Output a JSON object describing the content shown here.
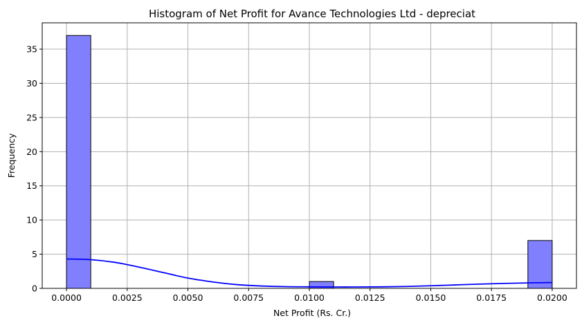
{
  "chart_data": {
    "type": "bar",
    "subtype": "histogram",
    "title": "Histogram of Net Profit for Avance Technologies Ltd - depreciat",
    "xlabel": "Net Profit (Rs. Cr.)",
    "ylabel": "Frequency",
    "xlim": [
      -0.001,
      0.021
    ],
    "ylim": [
      0,
      38.85
    ],
    "grid": true,
    "bin_width": 0.001,
    "bins": [
      {
        "start": 0.0,
        "end": 0.001,
        "count": 37
      },
      {
        "start": 0.001,
        "end": 0.002,
        "count": 0
      },
      {
        "start": 0.002,
        "end": 0.003,
        "count": 0
      },
      {
        "start": 0.003,
        "end": 0.004,
        "count": 0
      },
      {
        "start": 0.004,
        "end": 0.005,
        "count": 0
      },
      {
        "start": 0.005,
        "end": 0.006,
        "count": 0
      },
      {
        "start": 0.006,
        "end": 0.007,
        "count": 0
      },
      {
        "start": 0.007,
        "end": 0.008,
        "count": 0
      },
      {
        "start": 0.008,
        "end": 0.009,
        "count": 0
      },
      {
        "start": 0.009,
        "end": 0.01,
        "count": 0
      },
      {
        "start": 0.01,
        "end": 0.011,
        "count": 1
      },
      {
        "start": 0.011,
        "end": 0.012,
        "count": 0
      },
      {
        "start": 0.012,
        "end": 0.013,
        "count": 0
      },
      {
        "start": 0.013,
        "end": 0.014,
        "count": 0
      },
      {
        "start": 0.014,
        "end": 0.015,
        "count": 0
      },
      {
        "start": 0.015,
        "end": 0.016,
        "count": 0
      },
      {
        "start": 0.016,
        "end": 0.017,
        "count": 0
      },
      {
        "start": 0.017,
        "end": 0.018,
        "count": 0
      },
      {
        "start": 0.018,
        "end": 0.019,
        "count": 0
      },
      {
        "start": 0.019,
        "end": 0.02,
        "count": 7
      }
    ],
    "kde": {
      "x": [
        0.0,
        0.001,
        0.002,
        0.003,
        0.004,
        0.005,
        0.006,
        0.007,
        0.008,
        0.009,
        0.01,
        0.011,
        0.012,
        0.013,
        0.014,
        0.015,
        0.016,
        0.017,
        0.018,
        0.019,
        0.02
      ],
      "y": [
        4.3,
        4.2,
        3.8,
        3.1,
        2.3,
        1.5,
        0.95,
        0.55,
        0.35,
        0.25,
        0.22,
        0.2,
        0.2,
        0.22,
        0.28,
        0.38,
        0.5,
        0.62,
        0.72,
        0.8,
        0.85
      ]
    },
    "xticks": [
      "0.0000",
      "0.0025",
      "0.0050",
      "0.0075",
      "0.0100",
      "0.0125",
      "0.0150",
      "0.0175",
      "0.0200"
    ],
    "xtick_values": [
      0.0,
      0.0025,
      0.005,
      0.0075,
      0.01,
      0.0125,
      0.015,
      0.0175,
      0.02
    ],
    "yticks": [
      "0",
      "5",
      "10",
      "15",
      "20",
      "25",
      "30",
      "35"
    ],
    "ytick_values": [
      0,
      5,
      10,
      15,
      20,
      25,
      30,
      35
    ],
    "colors": {
      "bar_fill": "#8080ff",
      "bar_edge": "#000000",
      "kde_line": "#0000ff",
      "grid": "#b0b0b0"
    }
  }
}
